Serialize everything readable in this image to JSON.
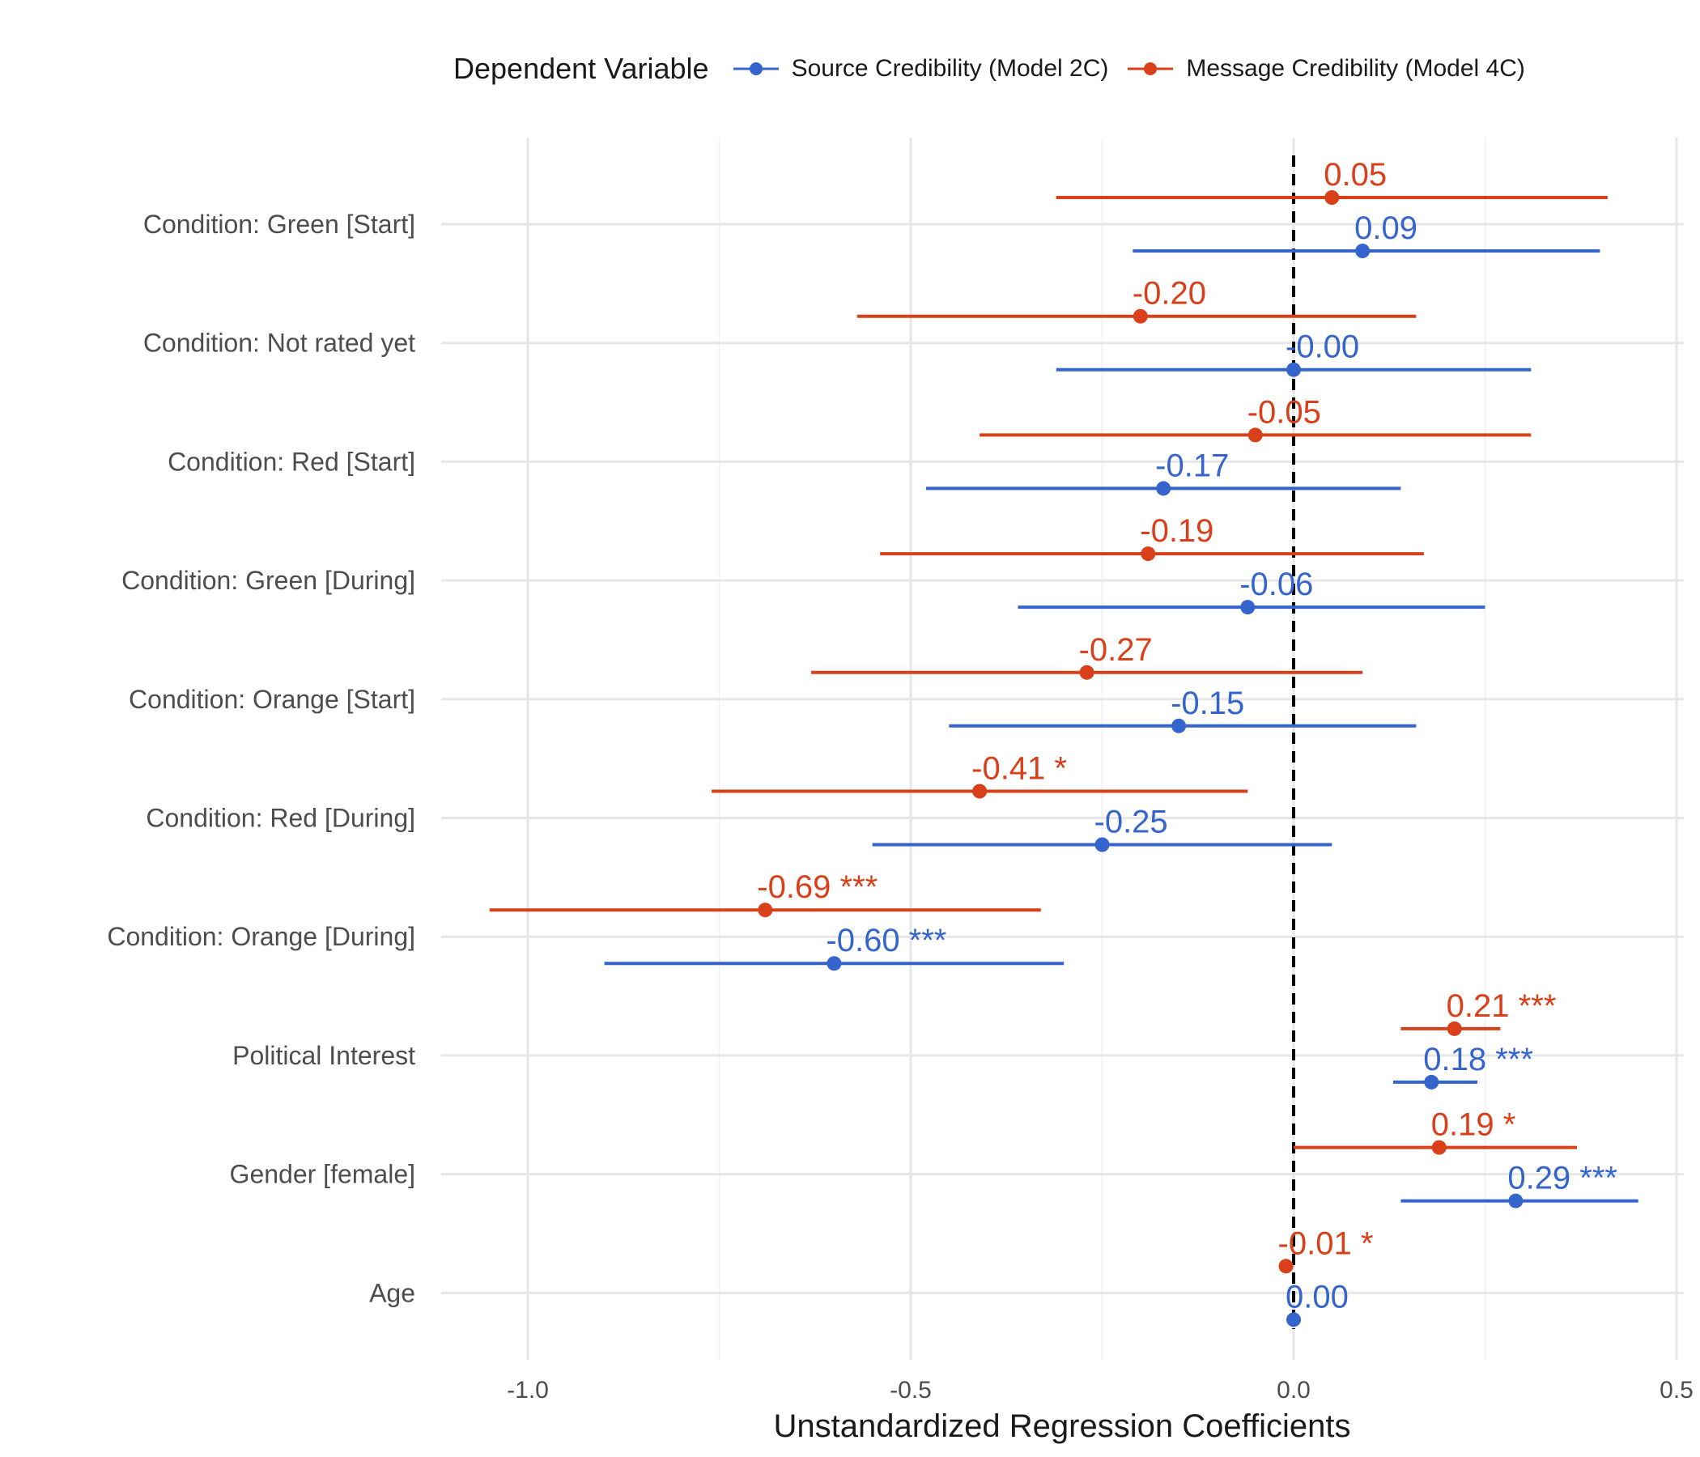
{
  "chart_data": {
    "type": "scatter",
    "subtype": "coefficient-plot",
    "xlabel": "Unstandardized Regression Coefficients",
    "ylabel": "",
    "xlim": [
      -1.1,
      0.5
    ],
    "xticks": [
      -1.0,
      -0.5,
      0.0,
      0.5
    ],
    "xtick_labels": [
      "-1.0",
      "-0.5",
      "0.0",
      "0.5"
    ],
    "reference_line": 0.0,
    "grid": true,
    "legend": {
      "title": "Dependent Variable",
      "placement": "top"
    },
    "categories": [
      "Condition: Green [Start]",
      "Condition: Not rated yet",
      "Condition: Red [Start]",
      "Condition: Green [During]",
      "Condition: Orange [Start]",
      "Condition: Red [During]",
      "Condition: Orange [During]",
      "Political Interest",
      "Gender [female]",
      "Age"
    ],
    "series": [
      {
        "name": "Message Credibility (Model 4C)",
        "color": "#d9401a",
        "estimates": [
          0.05,
          -0.2,
          -0.05,
          -0.19,
          -0.27,
          -0.41,
          -0.69,
          0.21,
          0.19,
          -0.01
        ],
        "ci_low": [
          -0.31,
          -0.57,
          -0.41,
          -0.54,
          -0.63,
          -0.76,
          -1.05,
          0.14,
          0.0,
          -0.01
        ],
        "ci_high": [
          0.41,
          0.16,
          0.31,
          0.17,
          0.09,
          -0.06,
          -0.33,
          0.27,
          0.37,
          -0.01
        ],
        "labels": [
          "0.05",
          "-0.20",
          "-0.05",
          "-0.19",
          "-0.27",
          "-0.41 *",
          "-0.69 ***",
          "0.21 ***",
          "0.19 *",
          "-0.01 *"
        ]
      },
      {
        "name": "Source Credibility (Model 2C)",
        "color": "#3565cc",
        "estimates": [
          0.09,
          -0.0,
          -0.17,
          -0.06,
          -0.15,
          -0.25,
          -0.6,
          0.18,
          0.29,
          0.0
        ],
        "ci_low": [
          -0.21,
          -0.31,
          -0.48,
          -0.36,
          -0.45,
          -0.55,
          -0.9,
          0.13,
          0.14,
          0.0
        ],
        "ci_high": [
          0.4,
          0.31,
          0.14,
          0.25,
          0.16,
          0.05,
          -0.3,
          0.24,
          0.45,
          0.0
        ],
        "labels": [
          "0.09",
          "-0.00",
          "-0.17",
          "-0.06",
          "-0.15",
          "-0.25",
          "-0.60 ***",
          "0.18 ***",
          "0.29 ***",
          "0.00"
        ]
      }
    ]
  }
}
